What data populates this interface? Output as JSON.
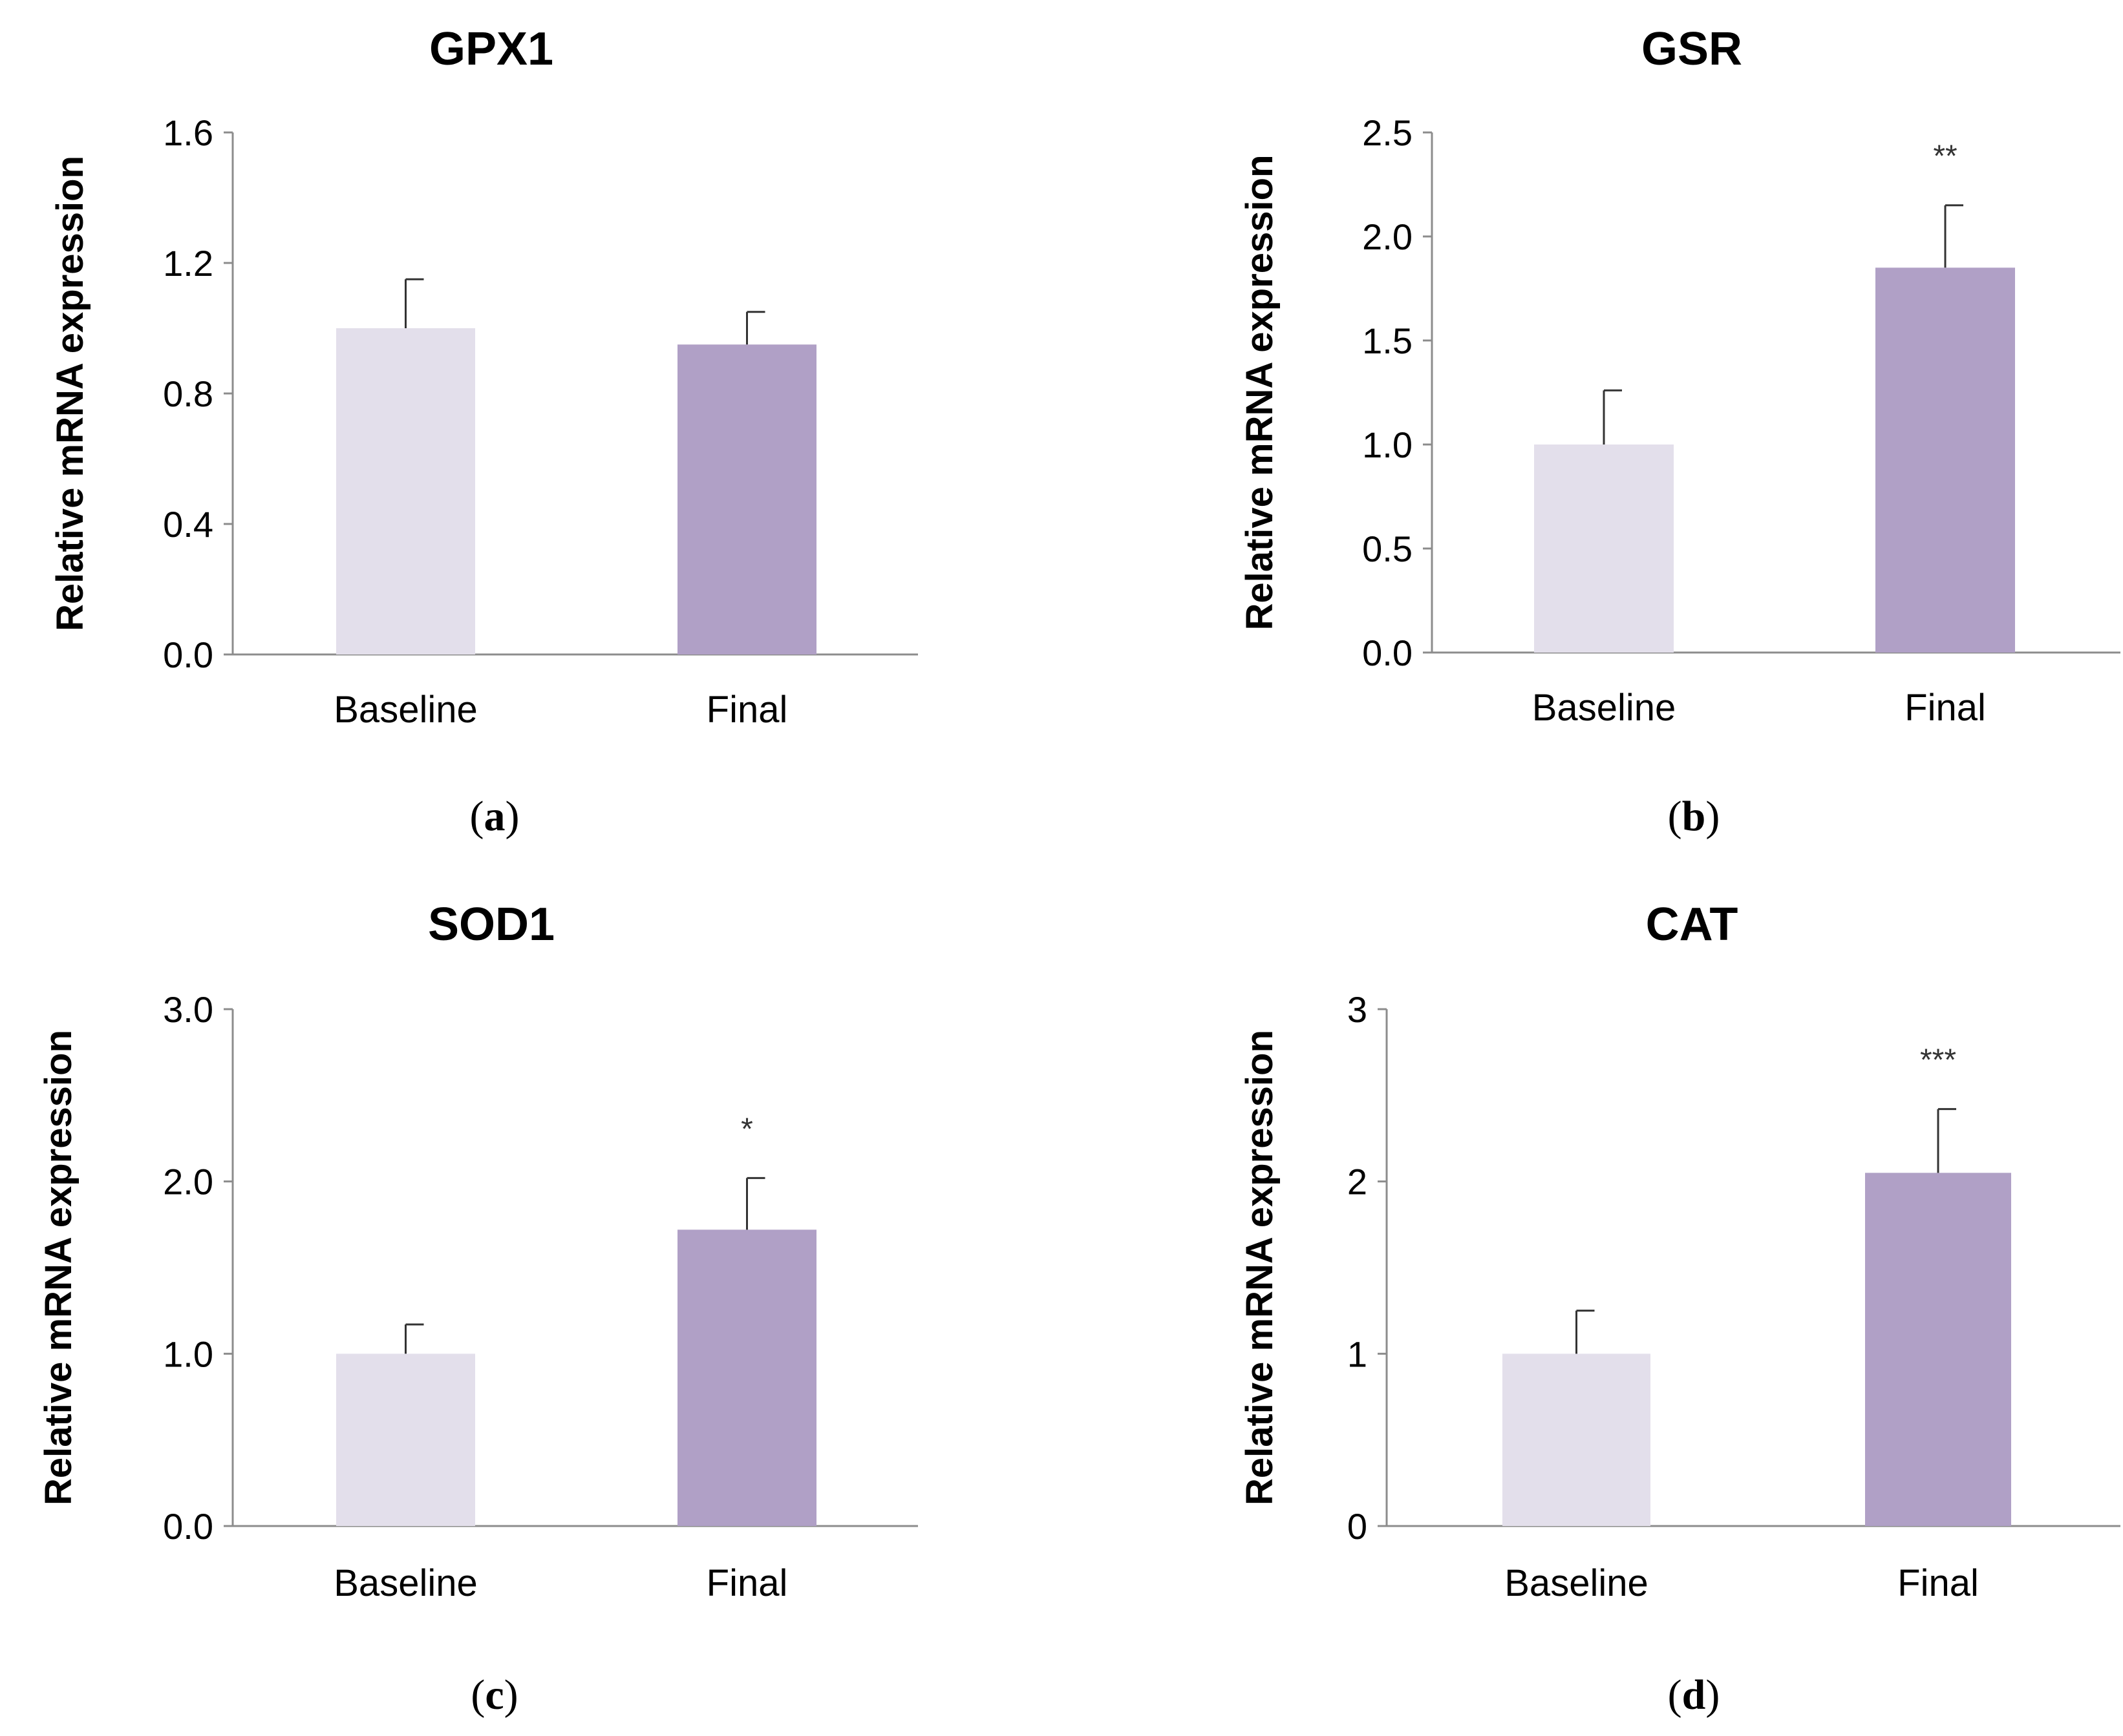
{
  "chart_data": [
    {
      "type": "bar",
      "panel": "a",
      "title": "GPX1",
      "xlabel": "",
      "ylabel": "Relative mRNA expression",
      "categories": [
        "Baseline",
        "Final"
      ],
      "values": [
        1.0,
        0.95
      ],
      "errors": [
        0.15,
        0.1
      ],
      "significance": [
        "",
        ""
      ],
      "ylim": [
        0,
        1.6
      ],
      "yticks": [
        "0.0",
        "0.4",
        "0.8",
        "1.2",
        "1.6"
      ],
      "colors": [
        "#e3dfeb",
        "#b0a0c6"
      ],
      "caption_open": "(",
      "caption_letter": "a",
      "caption_close": ")"
    },
    {
      "type": "bar",
      "panel": "b",
      "title": "GSR",
      "xlabel": "",
      "ylabel": "Relative mRNA expression",
      "categories": [
        "Baseline",
        "Final"
      ],
      "values": [
        1.0,
        1.85
      ],
      "errors": [
        0.26,
        0.3
      ],
      "significance": [
        "",
        "**"
      ],
      "ylim": [
        0,
        2.5
      ],
      "yticks": [
        "0.0",
        "0.5",
        "1.0",
        "1.5",
        "2.0",
        "2.5"
      ],
      "colors": [
        "#e3dfeb",
        "#b0a0c6"
      ],
      "caption_open": "(",
      "caption_letter": "b",
      "caption_close": ")"
    },
    {
      "type": "bar",
      "panel": "c",
      "title": "SOD1",
      "xlabel": "",
      "ylabel": "Relative mRNA expression",
      "categories": [
        "Baseline",
        "Final"
      ],
      "values": [
        1.0,
        1.72
      ],
      "errors": [
        0.17,
        0.3
      ],
      "significance": [
        "",
        "*"
      ],
      "ylim": [
        0,
        3.0
      ],
      "yticks": [
        "0.0",
        "1.0",
        "2.0",
        "3.0"
      ],
      "colors": [
        "#e3dfeb",
        "#b0a0c6"
      ],
      "caption_open": "(",
      "caption_letter": "c",
      "caption_close": ")"
    },
    {
      "type": "bar",
      "panel": "d",
      "title": "CAT",
      "xlabel": "",
      "ylabel": "Relative mRNA expression",
      "categories": [
        "Baseline",
        "Final"
      ],
      "values": [
        1.0,
        2.05
      ],
      "errors": [
        0.25,
        0.37
      ],
      "significance": [
        "",
        "***"
      ],
      "ylim": [
        0,
        3
      ],
      "yticks": [
        "0",
        "1",
        "2",
        "3"
      ],
      "colors": [
        "#e3dfeb",
        "#b0a0c6"
      ],
      "caption_open": "(",
      "caption_letter": "d",
      "caption_close": ")"
    }
  ]
}
